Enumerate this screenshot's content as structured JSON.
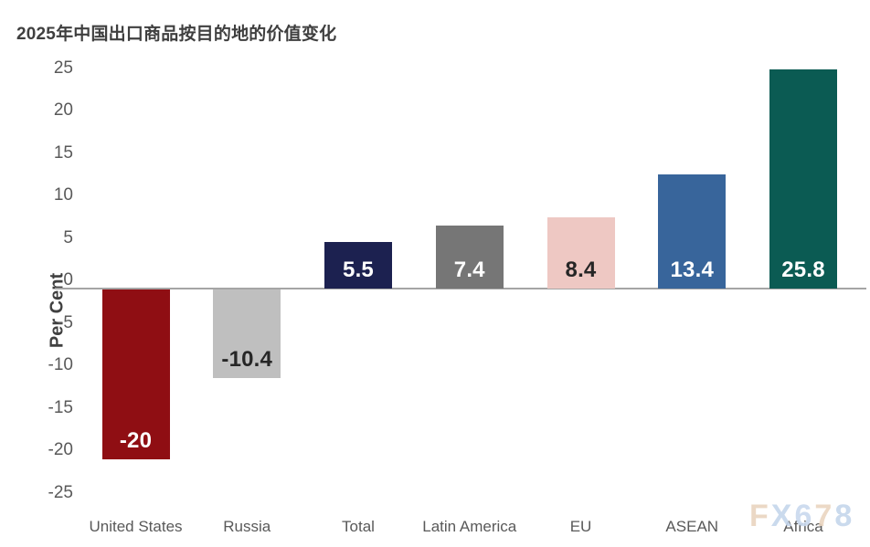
{
  "title": "2025年中国出口商品按目的地的价值变化",
  "y_axis": {
    "label": "Per Cent",
    "ticks": [
      25,
      20,
      15,
      10,
      5,
      0,
      -5,
      -10,
      -15,
      -20,
      -25
    ]
  },
  "chart_data": {
    "type": "bar",
    "title": "2025年中国出口商品按目的地的价值变化",
    "xlabel": "",
    "ylabel": "Per Cent",
    "ylim": [
      -25,
      25
    ],
    "ytick_step": 5,
    "grid": false,
    "legend": false,
    "categories": [
      "United States",
      "Russia",
      "Total",
      "Latin America",
      "EU",
      "ASEAN",
      "Africa"
    ],
    "values": [
      -20,
      -10.4,
      5.5,
      7.4,
      8.4,
      13.4,
      25.8
    ],
    "value_labels": [
      "-20",
      "-10.4",
      "5.5",
      "7.4",
      "8.4",
      "13.4",
      "25.8"
    ],
    "bar_colors": [
      "#8f0e13",
      "#bfbfbf",
      "#1c2150",
      "#767676",
      "#eec8c3",
      "#38659b",
      "#0b5b53"
    ],
    "value_label_colors": [
      "#ffffff",
      "#262626",
      "#ffffff",
      "#ffffff",
      "#262626",
      "#ffffff",
      "#ffffff"
    ],
    "axis_line_color": "#a5a5a5"
  },
  "watermark": {
    "text": "FX678",
    "letter_colors": [
      "#e9d4bf",
      "#c5d6ec",
      "#c9d9ee",
      "#ead5c0",
      "#c5d6ec"
    ]
  }
}
